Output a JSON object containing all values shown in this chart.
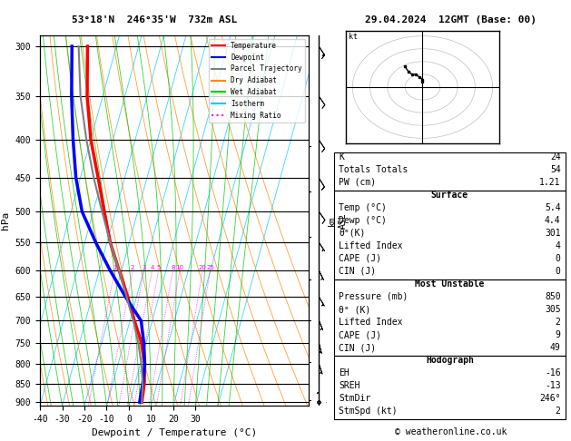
{
  "title_left": "53°18'N  246°35'W  732m ASL",
  "title_right": "29.04.2024  12GMT (Base: 00)",
  "xlabel": "Dewpoint / Temperature (°C)",
  "ylabel_left": "hPa",
  "pressure_ticks": [
    300,
    350,
    400,
    450,
    500,
    550,
    600,
    650,
    700,
    750,
    800,
    850,
    900
  ],
  "temp_range": [
    -40,
    35
  ],
  "temp_ticks": [
    -40,
    -30,
    -20,
    -10,
    0,
    10,
    20,
    30
  ],
  "pmin": 290,
  "pmax": 910,
  "background_color": "#ffffff",
  "plot_bg": "#ffffff",
  "temperature_profile": {
    "temps": [
      5.4,
      4.2,
      2.0,
      -2.0,
      -8.0,
      -14.0,
      -21.0,
      -28.5,
      -35.0,
      -42.0,
      -50.0,
      -57.0,
      -63.0
    ],
    "pressures": [
      900,
      850,
      800,
      750,
      700,
      650,
      600,
      550,
      500,
      450,
      400,
      350,
      300
    ],
    "color": "#ff0000",
    "linewidth": 2.5
  },
  "dewpoint_profile": {
    "temps": [
      4.4,
      3.5,
      2.0,
      -1.0,
      -5.0,
      -15.0,
      -25.0,
      -35.0,
      -45.0,
      -52.0,
      -58.0,
      -64.0,
      -70.0
    ],
    "pressures": [
      900,
      850,
      800,
      750,
      700,
      650,
      600,
      550,
      500,
      450,
      400,
      350,
      300
    ],
    "color": "#0000ff",
    "linewidth": 2.5
  },
  "parcel_profile": {
    "temps": [
      5.4,
      3.5,
      0.5,
      -3.5,
      -8.5,
      -14.5,
      -21.0,
      -28.5,
      -36.0,
      -44.0,
      -52.0,
      -60.0,
      -67.0
    ],
    "pressures": [
      900,
      850,
      800,
      750,
      700,
      650,
      600,
      550,
      500,
      450,
      400,
      350,
      300
    ],
    "color": "#808080",
    "linewidth": 1.5
  },
  "isotherm_color": "#00ccff",
  "dry_adiabat_color": "#ff8800",
  "wet_adiabat_color": "#00cc00",
  "mixing_ratio_color": "#ff00ff",
  "mixing_ratios": [
    1,
    2,
    3,
    4,
    5,
    8,
    10,
    20,
    25
  ],
  "km_ticks": [
    1,
    2,
    3,
    4,
    5,
    6,
    7
  ],
  "km_pressures": [
    895,
    795,
    700,
    616,
    540,
    470,
    408
  ],
  "lcl_pressure": 895,
  "stats": {
    "K": 24,
    "Totals_Totals": 54,
    "PW_cm": 1.21,
    "Surface_Temp": 5.4,
    "Surface_Dewp": 4.4,
    "theta_e": 301,
    "Lifted_Index": 4,
    "CAPE": 0,
    "CIN": 0,
    "MU_Pressure": 850,
    "MU_theta_e": 305,
    "MU_Lifted_Index": 2,
    "MU_CAPE": 9,
    "MU_CIN": 49,
    "EH": -16,
    "SREH": -13,
    "StmDir": 246,
    "StmSpd": 2
  },
  "wind_barbs": {
    "pressures": [
      900,
      850,
      800,
      750,
      700,
      650,
      600,
      550,
      500,
      450,
      400,
      350,
      300
    ],
    "u": [
      0,
      0,
      -1,
      -1,
      -2,
      -3,
      -3,
      -4,
      -5,
      -5,
      -6,
      -7,
      -8
    ],
    "v": [
      2,
      3,
      3,
      4,
      5,
      5,
      6,
      6,
      7,
      8,
      9,
      10,
      12
    ]
  },
  "legend_items": [
    {
      "label": "Temperature",
      "color": "#ff0000",
      "linestyle": "-"
    },
    {
      "label": "Dewpoint",
      "color": "#0000ff",
      "linestyle": "-"
    },
    {
      "label": "Parcel Trajectory",
      "color": "#808080",
      "linestyle": "-"
    },
    {
      "label": "Dry Adiabat",
      "color": "#ff8800",
      "linestyle": "-"
    },
    {
      "label": "Wet Adiabat",
      "color": "#00cc00",
      "linestyle": "-"
    },
    {
      "label": "Isotherm",
      "color": "#00ccff",
      "linestyle": "-"
    },
    {
      "label": "Mixing Ratio",
      "color": "#ff00ff",
      "linestyle": ":"
    }
  ],
  "copyright": "© weatheronline.co.uk"
}
